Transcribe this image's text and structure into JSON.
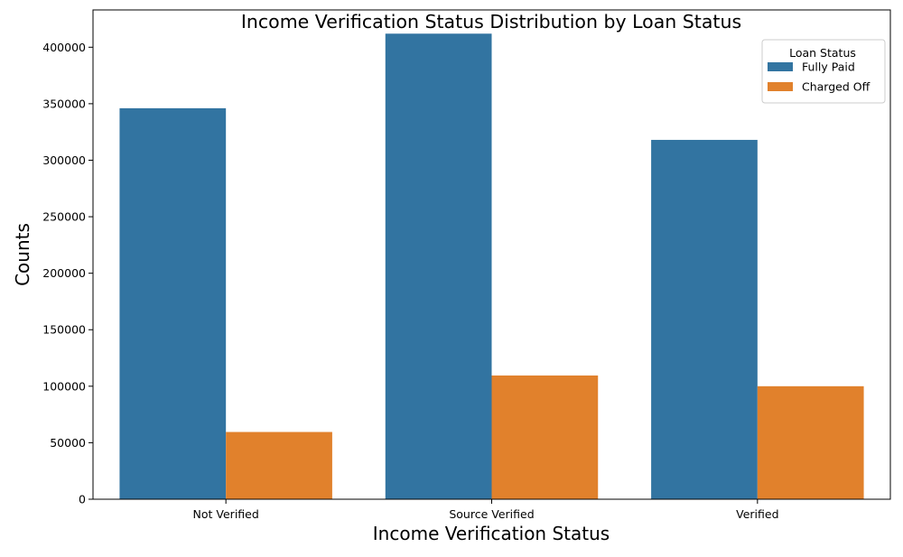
{
  "chart_data": {
    "type": "bar",
    "title": "Income Verification Status Distribution by Loan Status",
    "xlabel": "Income Verification Status",
    "ylabel": "Counts",
    "categories": [
      "Not Verified",
      "Source Verified",
      "Verified"
    ],
    "series": [
      {
        "name": "Fully Paid",
        "color": "#3274a1",
        "values": [
          346000,
          412000,
          318000
        ]
      },
      {
        "name": "Charged Off",
        "color": "#e1812c",
        "values": [
          59500,
          109500,
          100000
        ]
      }
    ],
    "ylim": [
      0,
      433000
    ],
    "yticks": [
      0,
      50000,
      100000,
      150000,
      200000,
      250000,
      300000,
      350000,
      400000
    ],
    "legend": {
      "title": "Loan Status",
      "placement": "top-right"
    },
    "grid": false
  }
}
